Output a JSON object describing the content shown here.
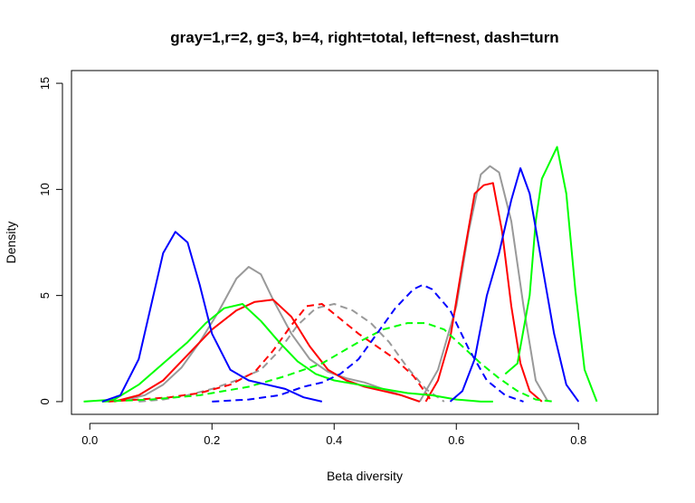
{
  "chart_data": {
    "type": "line",
    "title": "gray=1,r=2, g=3, b=4, right=total, left=nest, dash=turn",
    "xlabel": "Beta diversity",
    "ylabel": "Density",
    "xlim": [
      -0.03,
      0.93
    ],
    "ylim": [
      -0.6,
      15.6
    ],
    "x_ticks": [
      0.0,
      0.2,
      0.4,
      0.6,
      0.8
    ],
    "x_tick_labels": [
      "0.0",
      "0.2",
      "0.4",
      "0.6",
      "0.8"
    ],
    "y_ticks": [
      0,
      5,
      10,
      15
    ],
    "y_tick_labels": [
      "0",
      "5",
      "10",
      "15"
    ],
    "grid": false,
    "series": [
      {
        "color": "#999999",
        "dash": false,
        "x": [
          0.03,
          0.06,
          0.09,
          0.12,
          0.15,
          0.18,
          0.21,
          0.24,
          0.26,
          0.28,
          0.3,
          0.33,
          0.36,
          0.39,
          0.42,
          0.45,
          0.48,
          0.51,
          0.54
        ],
        "y": [
          0,
          0.1,
          0.3,
          0.8,
          1.6,
          2.8,
          4.2,
          5.8,
          6.35,
          6.0,
          4.8,
          3.2,
          2.0,
          1.4,
          1.1,
          0.9,
          0.6,
          0.3,
          0
        ]
      },
      {
        "color": "#999999",
        "dash": false,
        "x": [
          0.54,
          0.57,
          0.6,
          0.62,
          0.64,
          0.655,
          0.67,
          0.69,
          0.71,
          0.73,
          0.75
        ],
        "y": [
          0,
          1.5,
          4.5,
          8.0,
          10.7,
          11.1,
          10.8,
          8.5,
          4.5,
          1.0,
          0
        ]
      },
      {
        "color": "#999999",
        "dash": true,
        "x": [
          0.08,
          0.12,
          0.16,
          0.2,
          0.24,
          0.28,
          0.31,
          0.34,
          0.37,
          0.4,
          0.43,
          0.46,
          0.49,
          0.52,
          0.55,
          0.58
        ],
        "y": [
          0,
          0.1,
          0.3,
          0.6,
          1.0,
          1.5,
          2.4,
          3.6,
          4.4,
          4.6,
          4.3,
          3.7,
          2.8,
          1.6,
          0.6,
          0
        ]
      },
      {
        "color": "#ff0000",
        "dash": false,
        "x": [
          0.04,
          0.08,
          0.12,
          0.16,
          0.2,
          0.24,
          0.27,
          0.3,
          0.33,
          0.36,
          0.39,
          0.42,
          0.45,
          0.48,
          0.51,
          0.54
        ],
        "y": [
          0,
          0.3,
          1.0,
          2.2,
          3.4,
          4.3,
          4.7,
          4.8,
          4.0,
          2.6,
          1.5,
          1.0,
          0.7,
          0.5,
          0.3,
          0
        ]
      },
      {
        "color": "#ff0000",
        "dash": false,
        "x": [
          0.55,
          0.57,
          0.59,
          0.61,
          0.63,
          0.645,
          0.66,
          0.675,
          0.69,
          0.705,
          0.72,
          0.74
        ],
        "y": [
          0,
          1.0,
          3.0,
          6.5,
          9.8,
          10.2,
          10.3,
          8.0,
          4.5,
          1.8,
          0.5,
          0
        ]
      },
      {
        "color": "#ff0000",
        "dash": true,
        "x": [
          0.03,
          0.08,
          0.13,
          0.18,
          0.23,
          0.27,
          0.3,
          0.33,
          0.355,
          0.38,
          0.41,
          0.44,
          0.47,
          0.5,
          0.53,
          0.56
        ],
        "y": [
          0,
          0.1,
          0.2,
          0.4,
          0.8,
          1.4,
          2.4,
          3.6,
          4.5,
          4.6,
          3.9,
          3.2,
          2.6,
          2.0,
          1.2,
          0
        ]
      },
      {
        "color": "#00ff00",
        "dash": false,
        "x": [
          -0.01,
          0.04,
          0.08,
          0.12,
          0.16,
          0.19,
          0.22,
          0.25,
          0.28,
          0.31,
          0.34,
          0.37,
          0.4,
          0.44,
          0.48,
          0.52,
          0.56,
          0.6,
          0.64,
          0.66
        ],
        "y": [
          0,
          0.1,
          0.8,
          1.8,
          2.8,
          3.7,
          4.4,
          4.6,
          3.8,
          2.8,
          1.9,
          1.3,
          1.0,
          0.8,
          0.6,
          0.4,
          0.3,
          0.1,
          0,
          0
        ]
      },
      {
        "color": "#00ff00",
        "dash": false,
        "x": [
          0.68,
          0.7,
          0.72,
          0.73,
          0.74,
          0.75,
          0.765,
          0.78,
          0.795,
          0.81,
          0.83
        ],
        "y": [
          1.3,
          1.8,
          5.0,
          8.5,
          10.5,
          11.1,
          12.0,
          9.8,
          5.2,
          1.5,
          0
        ]
      },
      {
        "color": "#00ff00",
        "dash": true,
        "x": [
          0.02,
          0.1,
          0.18,
          0.26,
          0.32,
          0.38,
          0.44,
          0.48,
          0.52,
          0.55,
          0.58,
          0.61,
          0.64,
          0.67,
          0.7,
          0.73,
          0.76
        ],
        "y": [
          0,
          0.1,
          0.3,
          0.7,
          1.2,
          1.8,
          2.8,
          3.4,
          3.7,
          3.7,
          3.4,
          2.6,
          1.8,
          1.1,
          0.5,
          0.1,
          0
        ]
      },
      {
        "color": "#0000ff",
        "dash": false,
        "x": [
          0.02,
          0.05,
          0.08,
          0.1,
          0.12,
          0.14,
          0.16,
          0.18,
          0.2,
          0.23,
          0.26,
          0.29,
          0.32,
          0.35,
          0.38
        ],
        "y": [
          0,
          0.3,
          2.0,
          4.5,
          7.0,
          8.0,
          7.5,
          5.5,
          3.2,
          1.5,
          1.0,
          0.8,
          0.6,
          0.2,
          0
        ]
      },
      {
        "color": "#0000ff",
        "dash": false,
        "x": [
          0.59,
          0.61,
          0.63,
          0.65,
          0.67,
          0.69,
          0.705,
          0.72,
          0.74,
          0.76,
          0.78,
          0.8
        ],
        "y": [
          0,
          0.5,
          2.0,
          5.0,
          7.0,
          9.5,
          11.0,
          9.8,
          6.5,
          3.2,
          0.8,
          0
        ]
      },
      {
        "color": "#0000ff",
        "dash": true,
        "x": [
          0.2,
          0.26,
          0.31,
          0.35,
          0.38,
          0.41,
          0.44,
          0.47,
          0.5,
          0.53,
          0.545,
          0.56,
          0.59,
          0.62,
          0.65,
          0.68,
          0.71
        ],
        "y": [
          0,
          0.1,
          0.3,
          0.7,
          0.9,
          1.3,
          2.0,
          3.2,
          4.4,
          5.3,
          5.5,
          5.3,
          4.3,
          2.5,
          1.0,
          0.3,
          0
        ]
      }
    ]
  }
}
